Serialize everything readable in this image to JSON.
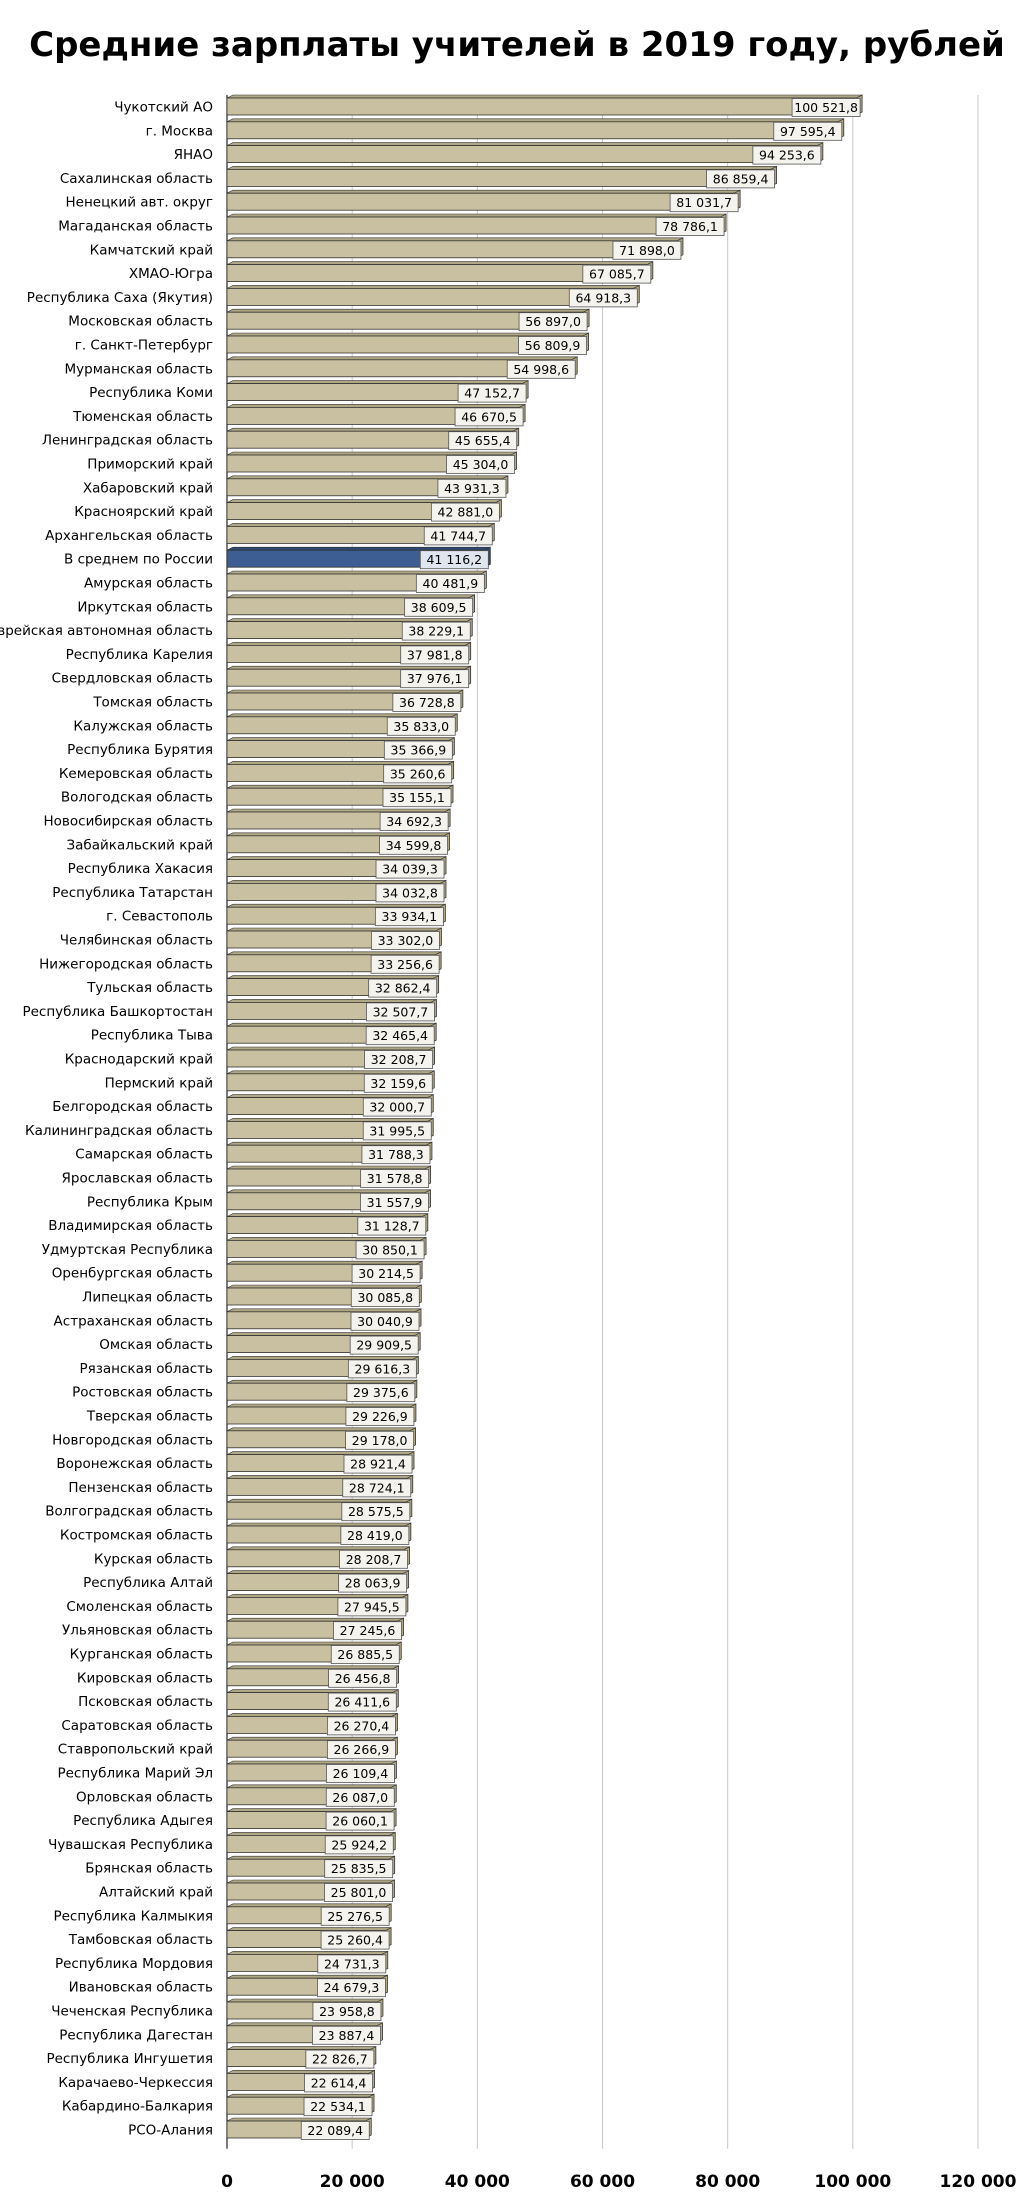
{
  "chart_data": {
    "type": "bar",
    "orientation": "horizontal",
    "title": "Средние зарплаты учителей в 2019 году, рублей",
    "xlabel": "",
    "ylabel": "",
    "xlim": [
      0,
      120000
    ],
    "xticks": [
      0,
      20000,
      40000,
      60000,
      80000,
      100000,
      120000
    ],
    "xtick_labels": [
      "0",
      "20 000",
      "40 000",
      "60 000",
      "80 000",
      "100 000",
      "120 000"
    ],
    "grid": "vertical",
    "colors": {
      "bar": "#c8c0a0",
      "bar_side": "#b0a884",
      "highlight": "#3c5e92",
      "highlight_side": "#2e4a74",
      "label_bg": "#f4f3ee",
      "grid": "#c8c8c8"
    },
    "highlight_category": "В среднем по России",
    "categories": [
      "Чукотский АО",
      "г. Москва",
      "ЯНАО",
      "Сахалинская область",
      "Ненецкий авт. округ",
      "Магаданская область",
      "Камчатский край",
      "ХМАО-Югра",
      "Республика Саха (Якутия)",
      "Московская область",
      "г. Санкт-Петербург",
      "Мурманская область",
      "Республика Коми",
      "Тюменская область",
      "Ленинградская область",
      "Приморский край",
      "Хабаровский край",
      "Красноярский край",
      "Архангельская область",
      "В среднем по России",
      "Амурская область",
      "Иркутская область",
      "Еврейская автономная область",
      "Республика Карелия",
      "Свердловская область",
      "Томская область",
      "Калужская область",
      "Республика Бурятия",
      "Кемеровская область",
      "Вологодская область",
      "Новосибирская область",
      "Забайкальский край",
      "Республика Хакасия",
      "Республика Татарстан",
      "г. Севастополь",
      "Челябинская область",
      "Нижегородская область",
      "Тульская область",
      "Республика Башкортостан",
      "Республика Тыва",
      "Краснодарский край",
      "Пермский край",
      "Белгородская область",
      "Калининградская область",
      "Самарская область",
      "Ярославская область",
      "Республика Крым",
      "Владимирская область",
      "Удмуртская Республика",
      "Оренбургская область",
      "Липецкая область",
      "Астраханская область",
      "Омская область",
      "Рязанская область",
      "Ростовская область",
      "Тверская область",
      "Новгородская область",
      "Воронежская область",
      "Пензенская область",
      "Волгоградская область",
      "Костромская область",
      "Курская область",
      "Республика Алтай",
      "Смоленская область",
      "Ульяновская область",
      "Курганская область",
      "Кировская область",
      "Псковская область",
      "Саратовская область",
      "Ставропольский край",
      "Республика Марий Эл",
      "Орловская область",
      "Республика Адыгея",
      "Чувашская Республика",
      "Брянская область",
      "Алтайский край",
      "Республика Калмыкия",
      "Тамбовская область",
      "Республика Мордовия",
      "Ивановская область",
      "Чеченская Республика",
      "Республика Дагестан",
      "Республика Ингушетия",
      "Карачаево-Черкессия",
      "Кабардино-Балкария",
      "РСО-Алания"
    ],
    "values": [
      100521.8,
      97595.4,
      94253.6,
      86859.4,
      81031.7,
      78786.1,
      71898.0,
      67085.7,
      64918.3,
      56897.0,
      56809.9,
      54998.6,
      47152.7,
      46670.5,
      45655.4,
      45304.0,
      43931.3,
      42881.0,
      41744.7,
      41116.2,
      40481.9,
      38609.5,
      38229.1,
      37981.8,
      37976.1,
      36728.8,
      35833.0,
      35366.9,
      35260.6,
      35155.1,
      34692.3,
      34599.8,
      34039.3,
      34032.8,
      33934.1,
      33302.0,
      33256.6,
      32862.4,
      32507.7,
      32465.4,
      32208.7,
      32159.6,
      32000.7,
      31995.5,
      31788.3,
      31578.8,
      31557.9,
      31128.7,
      30850.1,
      30214.5,
      30085.8,
      30040.9,
      29909.5,
      29616.3,
      29375.6,
      29226.9,
      29178.0,
      28921.4,
      28724.1,
      28575.5,
      28419.0,
      28208.7,
      28063.9,
      27945.5,
      27245.6,
      26885.5,
      26456.8,
      26411.6,
      26270.4,
      26266.9,
      26109.4,
      26087.0,
      26060.1,
      25924.2,
      25835.5,
      25801.0,
      25276.5,
      25260.4,
      24731.3,
      24679.3,
      23958.8,
      23887.4,
      22826.7,
      22614.4,
      22534.1,
      22089.4
    ],
    "value_labels": [
      "100 521,8",
      "97 595,4",
      "94 253,6",
      "86 859,4",
      "81 031,7",
      "78 786,1",
      "71 898,0",
      "67 085,7",
      "64 918,3",
      "56 897,0",
      "56 809,9",
      "54 998,6",
      "47 152,7",
      "46 670,5",
      "45 655,4",
      "45 304,0",
      "43 931,3",
      "42 881,0",
      "41 744,7",
      "41 116,2",
      "40 481,9",
      "38 609,5",
      "38 229,1",
      "37 981,8",
      "37 976,1",
      "36 728,8",
      "35 833,0",
      "35 366,9",
      "35 260,6",
      "35 155,1",
      "34 692,3",
      "34 599,8",
      "34 039,3",
      "34 032,8",
      "33 934,1",
      "33 302,0",
      "33 256,6",
      "32 862,4",
      "32 507,7",
      "32 465,4",
      "32 208,7",
      "32 159,6",
      "32 000,7",
      "31 995,5",
      "31 788,3",
      "31 578,8",
      "31 557,9",
      "31 128,7",
      "30 850,1",
      "30 214,5",
      "30 085,8",
      "30 040,9",
      "29 909,5",
      "29 616,3",
      "29 375,6",
      "29 226,9",
      "29 178,0",
      "28 921,4",
      "28 724,1",
      "28 575,5",
      "28 419,0",
      "28 208,7",
      "28 063,9",
      "27 945,5",
      "27 245,6",
      "26 885,5",
      "26 456,8",
      "26 411,6",
      "26 270,4",
      "26 266,9",
      "26 109,4",
      "26 087,0",
      "26 060,1",
      "25 924,2",
      "25 835,5",
      "25 801,0",
      "25 276,5",
      "25 260,4",
      "24 731,3",
      "24 679,3",
      "23 958,8",
      "23 887,4",
      "22 826,7",
      "22 614,4",
      "22 534,1",
      "22 089,4"
    ]
  }
}
